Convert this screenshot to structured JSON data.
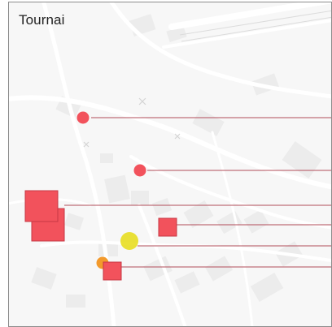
{
  "map": {
    "title": "Tournai",
    "colors": {
      "background": "#f7f7f7",
      "streets": "#ffffff",
      "blocks": "#ececec",
      "border": "#8c8c8c",
      "leader_line": "#b24d5a",
      "red_marker": "#f2525c",
      "red_marker_stroke": "#c73845",
      "orange_marker": "#f39a2c",
      "yellow_marker": "#e6dc14"
    },
    "markers": [
      {
        "id": "circle-1",
        "shape": "circle",
        "color": "red"
      },
      {
        "id": "circle-2",
        "shape": "circle",
        "color": "red"
      },
      {
        "id": "square-large-1",
        "shape": "square",
        "color": "red"
      },
      {
        "id": "square-large-2",
        "shape": "square",
        "color": "red"
      },
      {
        "id": "square-medium",
        "shape": "square",
        "color": "red"
      },
      {
        "id": "circle-yellow",
        "shape": "circle",
        "color": "yellow"
      },
      {
        "id": "circle-orange",
        "shape": "circle",
        "color": "orange"
      },
      {
        "id": "square-small",
        "shape": "square",
        "color": "red"
      }
    ]
  }
}
